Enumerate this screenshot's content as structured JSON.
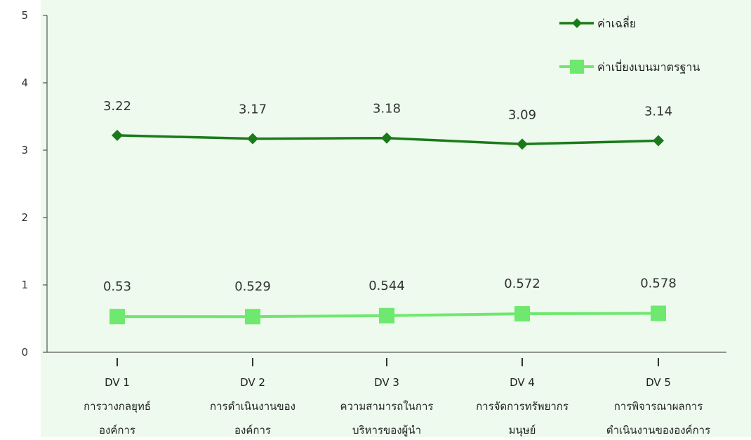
{
  "chart_data": {
    "type": "line",
    "categories": [
      [
        "DV 1",
        "การวางกลยุทธ์",
        "องค์การ"
      ],
      [
        "DV 2",
        "การดำเนินงานของ",
        "องค์การ"
      ],
      [
        "DV 3",
        "ความสามารถในการ",
        "บริหารของผู้นำ"
      ],
      [
        "DV 4",
        "การจัดการทรัพยากร",
        "มนุษย์"
      ],
      [
        "DV 5",
        "การพิจารณาผลการ",
        "ดำเนินงานขององค์การ"
      ]
    ],
    "series": [
      {
        "name": "ค่าเฉลี่ย",
        "values": [
          3.22,
          3.17,
          3.18,
          3.09,
          3.14
        ],
        "labels": [
          "3.22",
          "3.17",
          "3.18",
          "3.09",
          "3.14"
        ],
        "color": "#1a7a1a",
        "marker": "diamond"
      },
      {
        "name": "ค่าเบี่ยงเบนมาตรฐาน",
        "values": [
          0.53,
          0.529,
          0.544,
          0.572,
          0.578
        ],
        "labels": [
          "0.53",
          "0.529",
          "0.544",
          "0.572",
          "0.578"
        ],
        "color": "#6ee86e",
        "marker": "square"
      }
    ],
    "yticks": [
      "0",
      "1",
      "2",
      "3",
      "4",
      "5"
    ],
    "ylim": [
      0,
      5
    ],
    "grid": false,
    "legend_position": "top-right",
    "background": "#edfaed"
  }
}
